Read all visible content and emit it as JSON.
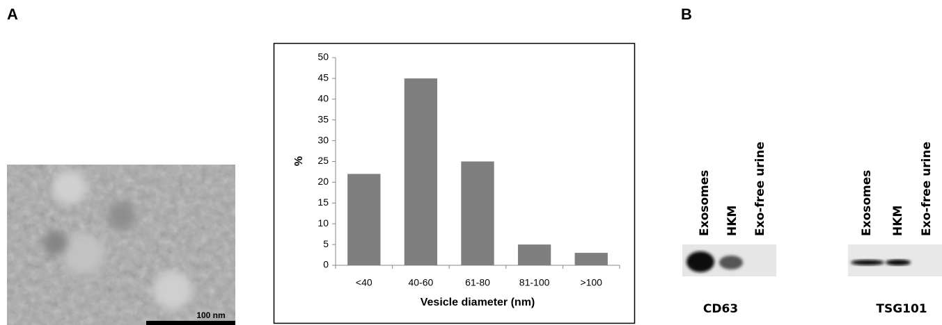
{
  "panel_labels": [
    "A",
    "B"
  ],
  "micrograph": {
    "scale_bar": "100 nm"
  },
  "chart_data": {
    "type": "bar",
    "y_label": "%",
    "x_label": "Vesicle diameter (nm)",
    "categories": [
      "<40",
      "40-60",
      "61-80",
      "81-100",
      ">100"
    ],
    "values": [
      22,
      45,
      25,
      5,
      3
    ],
    "color": "#7f7f7f",
    "ylim": [
      0,
      50
    ],
    "yticks": [
      0,
      5,
      10,
      15,
      20,
      25,
      30,
      35,
      40,
      45,
      50
    ]
  },
  "blots": [
    {
      "lanes": [
        "Exosomes",
        "HKM",
        "Exo-free urine"
      ],
      "marker": "CD63"
    },
    {
      "lanes": [
        "Exosomes",
        "HKM",
        "Exo-free urine"
      ],
      "marker": "TSG101"
    }
  ]
}
